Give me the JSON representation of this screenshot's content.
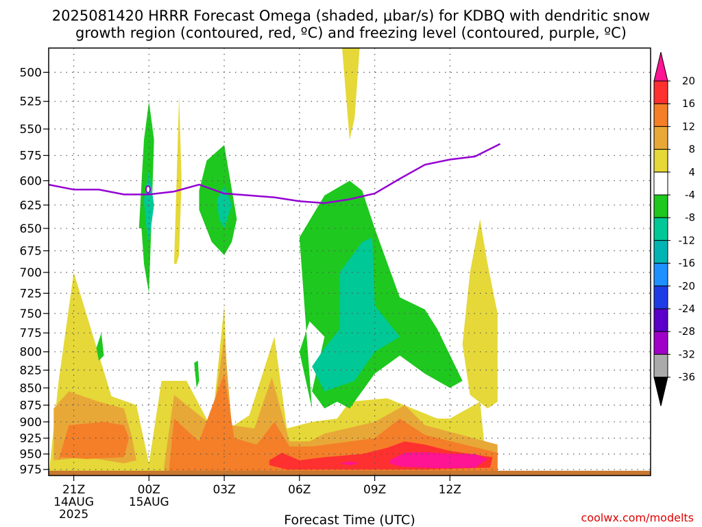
{
  "chart_data": {
    "type": "heatmap",
    "title_line1": "2025081420 HRRR Forecast Omega (shaded, μbar/s) for KDBQ with dendritic snow",
    "title_line2": "growth region (contoured, red, ºC) and freezing level (contoured, purple, ºC)",
    "xlabel": "Forecast Time (UTC)",
    "ylabel": "",
    "credit": "coolwx.com/modelts",
    "x_range_hours": [
      0,
      24
    ],
    "y_range_hpa": [
      985,
      480
    ],
    "y_scale": "log",
    "grid": true,
    "x_ticks": [
      {
        "hour": 1,
        "line1": "21Z",
        "line2": "14AUG",
        "line3": "2025"
      },
      {
        "hour": 4,
        "line1": "00Z",
        "line2": "15AUG",
        "line3": ""
      },
      {
        "hour": 7,
        "line1": "03Z",
        "line2": "",
        "line3": ""
      },
      {
        "hour": 10,
        "line1": "06Z",
        "line2": "",
        "line3": ""
      },
      {
        "hour": 13,
        "line1": "09Z",
        "line2": "",
        "line3": ""
      },
      {
        "hour": 16,
        "line1": "12Z",
        "line2": "",
        "line3": ""
      }
    ],
    "y_ticks": [
      500,
      525,
      550,
      575,
      600,
      625,
      650,
      675,
      700,
      725,
      750,
      775,
      800,
      825,
      850,
      875,
      900,
      925,
      950,
      975
    ],
    "colorbar": {
      "labels": [
        "20",
        "16",
        "12",
        "8",
        "4",
        "-4",
        "-8",
        "-12",
        "-16",
        "-20",
        "-24",
        "-28",
        "-32",
        "-36"
      ],
      "colors": [
        "#ff1493",
        "#ff3030",
        "#f47f28",
        "#e8a838",
        "#e5d838",
        "#ffffff",
        "#1ec81e",
        "#00c896",
        "#00b4b4",
        "#1e90ff",
        "#1e3ce6",
        "#5a00c8",
        "#a000c8",
        "#aaaaaa",
        "#000000"
      ]
    },
    "freezing_level": {
      "color": "#9400d3",
      "hours": [
        0,
        1,
        2,
        3,
        4,
        5,
        6,
        7,
        8,
        9,
        10,
        11,
        12,
        13,
        14,
        15,
        16,
        17,
        18
      ],
      "hpa": [
        604,
        609,
        609,
        614,
        614,
        611,
        604,
        613,
        615,
        617,
        621,
        623,
        619,
        613,
        598,
        584,
        579,
        576,
        564
      ]
    },
    "omega_regions": [
      {
        "level": "4",
        "color": "#e5d838",
        "hours": [
          0,
          0.4,
          1,
          2.5,
          3.5,
          4,
          4.5,
          5.5,
          6.5,
          7,
          7.2,
          8,
          9,
          9.5,
          10.5,
          11.5,
          12,
          13.5,
          15.5,
          16,
          17.2,
          17.5,
          17.9
        ],
        "hpa": [
          985,
          840,
          700,
          862,
          875,
          965,
          840,
          840,
          910,
          740,
          910,
          890,
          780,
          910,
          900,
          895,
          870,
          865,
          895,
          895,
          870,
          985,
          985
        ]
      },
      {
        "level": "4",
        "color": "#e5d838",
        "hours": [
          16.5,
          16.8,
          17.2,
          17.5,
          17.9,
          17.9,
          17.5,
          16.8
        ],
        "hpa": [
          790,
          700,
          640,
          690,
          750,
          870,
          880,
          860
        ]
      },
      {
        "level": "4",
        "color": "#e5d838",
        "hours": [
          5,
          5.1,
          5.2,
          5.3,
          5.2,
          5.1
        ],
        "hpa": [
          690,
          600,
          520,
          600,
          680,
          690
        ]
      },
      {
        "level": "4",
        "color": "#e5d838",
        "hours": [
          11.7,
          12.4,
          12.2,
          12
        ],
        "hpa": [
          480,
          480,
          540,
          560
        ]
      },
      {
        "level": "8",
        "color": "#e8a838",
        "hours": [
          0.2,
          0.8,
          2,
          3,
          3.3,
          3.5,
          3,
          1.5,
          0.2
        ],
        "hpa": [
          880,
          855,
          870,
          880,
          920,
          960,
          965,
          955,
          960
        ]
      },
      {
        "level": "8",
        "color": "#e8a838",
        "hours": [
          4.6,
          5,
          6.5,
          7,
          7.3,
          8.2,
          8.9,
          9.6,
          10.4,
          11,
          13,
          14.2,
          15,
          17.9,
          17.9,
          4.6
        ],
        "hpa": [
          970,
          860,
          905,
          780,
          905,
          910,
          835,
          930,
          930,
          918,
          900,
          875,
          905,
          935,
          985,
          985
        ]
      },
      {
        "level": "12",
        "color": "#f47f28",
        "hours": [
          0.4,
          0.8,
          2.2,
          3,
          3.2,
          3,
          1.5,
          0.5
        ],
        "hpa": [
          960,
          905,
          900,
          905,
          925,
          955,
          958,
          955
        ]
      },
      {
        "level": "12",
        "color": "#f47f28",
        "hours": [
          4.8,
          5,
          6,
          7,
          7.4,
          8.3,
          9,
          9.6,
          10.5,
          13,
          14,
          15,
          17.9,
          17.9,
          4.8
        ],
        "hpa": [
          975,
          895,
          930,
          830,
          925,
          935,
          900,
          938,
          938,
          925,
          895,
          920,
          948,
          985,
          985
        ]
      },
      {
        "level": "16",
        "color": "#ff3030",
        "hours": [
          8.8,
          9.3,
          10,
          11,
          12.5,
          13.5,
          14.2,
          15,
          16,
          17.7,
          17.6,
          15,
          12,
          9.5,
          8.8
        ],
        "hpa": [
          960,
          948,
          960,
          955,
          950,
          940,
          930,
          935,
          945,
          955,
          972,
          975,
          975,
          975,
          968
        ]
      },
      {
        "level": "20",
        "color": "#ff1493",
        "hours": [
          13.6,
          14.2,
          15,
          16,
          17,
          17.5,
          17,
          15.5,
          14,
          13.6
        ],
        "hpa": [
          960,
          948,
          947,
          950,
          950,
          958,
          972,
          973,
          970,
          965
        ]
      },
      {
        "level": "20",
        "color": "#ff1493",
        "hours": [
          11.6,
          12,
          12.4,
          12
        ],
        "hpa": [
          965,
          962,
          965,
          968
        ]
      },
      {
        "level": "-4",
        "color": "#1ec81e",
        "hours": [
          3.6,
          3.8,
          4,
          4.2,
          4.1,
          4,
          3.8,
          3.7
        ],
        "hpa": [
          650,
          560,
          525,
          560,
          640,
          725,
          690,
          650
        ]
      },
      {
        "level": "-4",
        "color": "#1ec81e",
        "hours": [
          6,
          6.3,
          7,
          7.5,
          7.3,
          7,
          6.5,
          6
        ],
        "hpa": [
          610,
          580,
          565,
          640,
          665,
          680,
          665,
          630
        ]
      },
      {
        "level": "-4",
        "color": "#1ec81e",
        "hours": [
          10,
          11,
          12,
          12.5,
          13,
          14,
          15,
          15.5,
          16.5,
          16,
          15,
          14,
          13,
          12,
          11.5,
          11,
          10.5,
          11,
          10.4,
          10,
          10.5
        ],
        "hpa": [
          660,
          615,
          600,
          610,
          650,
          730,
          745,
          770,
          840,
          850,
          830,
          805,
          830,
          880,
          870,
          880,
          855,
          780,
          760,
          800,
          880
        ]
      },
      {
        "level": "-4",
        "color": "#1ec81e",
        "hours": [
          1.9,
          2.1,
          2.2,
          2
        ],
        "hpa": [
          795,
          775,
          805,
          812
        ]
      },
      {
        "level": "-4",
        "color": "#1ec81e",
        "hours": [
          5.8,
          5.95,
          6,
          5.9
        ],
        "hpa": [
          815,
          812,
          840,
          850
        ]
      },
      {
        "level": "-8",
        "color": "#00c896",
        "hours": [
          3.8,
          4,
          4.2,
          4,
          3.9
        ],
        "hpa": [
          620,
          590,
          625,
          665,
          650
        ]
      },
      {
        "level": "-8",
        "color": "#00c896",
        "hours": [
          6.7,
          7,
          7.3,
          7,
          6.8
        ],
        "hpa": [
          620,
          605,
          625,
          650,
          640
        ]
      },
      {
        "level": "-8",
        "color": "#00c896",
        "hours": [
          11.6,
          12.5,
          12.9,
          13,
          14,
          13,
          12.2,
          11,
          10.5,
          11,
          11.6
        ],
        "hpa": [
          700,
          665,
          660,
          740,
          780,
          800,
          840,
          855,
          820,
          795,
          770
        ]
      }
    ]
  }
}
